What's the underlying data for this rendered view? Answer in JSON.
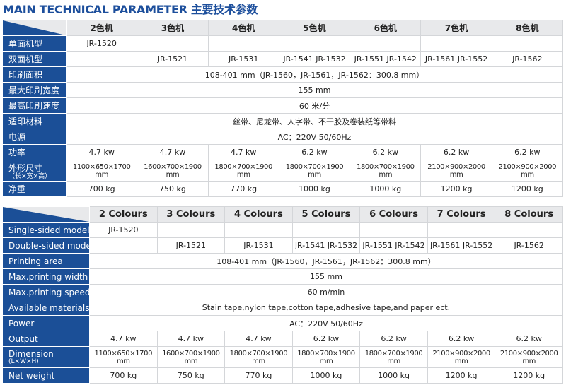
{
  "title": "MAIN TECHNICAL PARAMETER 主要技术参数",
  "colors": {
    "label_bg": "#1b4f97",
    "header_bg": "#e8e9eb",
    "title": "#1d4f9c"
  },
  "table_cn": {
    "headers": [
      "2色机",
      "3色机",
      "4色机",
      "5色机",
      "6色机",
      "7色机",
      "8色机"
    ],
    "rows": [
      {
        "label": "单面机型",
        "cells": [
          "JR-1520",
          "",
          "",
          "",
          "",
          "",
          ""
        ]
      },
      {
        "label": "双面机型",
        "cells": [
          "",
          "JR-1521",
          "JR-1531",
          "JR-1541 JR-1532",
          "JR-1551 JR-1542",
          "JR-1561 JR-1552",
          "JR-1562"
        ]
      },
      {
        "label": "印刷面积",
        "span": "108-401 mm（JR-1560，JR-1561，JR-1562：300.8 mm）"
      },
      {
        "label": "最大印刷宽度",
        "span": "155 mm"
      },
      {
        "label": "最高印刷速度",
        "span": "60 米/分"
      },
      {
        "label": "适印材料",
        "span": "丝带、尼龙带、人字带、不干胶及卷装纸等带料"
      },
      {
        "label": "电源",
        "span": "AC：220V   50/60Hz"
      },
      {
        "label": "功率",
        "cells": [
          "4.7 kw",
          "4.7 kw",
          "4.7 kw",
          "6.2 kw",
          "6.2 kw",
          "6.2 kw",
          "6.2 kw"
        ]
      },
      {
        "label": "外形尺寸",
        "sublabel": "（长×宽×高）",
        "dim": true,
        "cells": [
          "1100×650×1700 mm",
          "1600×700×1900 mm",
          "1800×700×1900 mm",
          "1800×700×1900 mm",
          "1800×700×1900 mm",
          "2100×900×2000 mm",
          "2100×900×2000 mm"
        ]
      },
      {
        "label": "净重",
        "cells": [
          "700 kg",
          "750 kg",
          "770 kg",
          "1000 kg",
          "1000 kg",
          "1200 kg",
          "1200 kg"
        ]
      }
    ]
  },
  "table_en": {
    "headers": [
      "2 Colours",
      "3 Colours",
      "4 Colours",
      "5 Colours",
      "6 Colours",
      "7 Colours",
      "8 Colours"
    ],
    "rows": [
      {
        "label": "Single-sided model",
        "cells": [
          "JR-1520",
          "",
          "",
          "",
          "",
          "",
          ""
        ]
      },
      {
        "label": "Double-sided model",
        "cells": [
          "",
          "JR-1521",
          "JR-1531",
          "JR-1541 JR-1532",
          "JR-1551 JR-1542",
          "JR-1561 JR-1552",
          "JR-1562"
        ]
      },
      {
        "label": "Printing area",
        "span": "108-401 mm（JR-1560，JR-1561，JR-1562：300.8 mm）"
      },
      {
        "label": "Max.printing width",
        "span": "155 mm"
      },
      {
        "label": "Max.printing speed",
        "span": "60 m/min"
      },
      {
        "label": "Available materials",
        "span": "Stain tape,nylon tape,cotton tape,adhesive tape,and paper ect."
      },
      {
        "label": "Power",
        "span": "AC：220V   50/60Hz"
      },
      {
        "label": "Output",
        "cells": [
          "4.7 kw",
          "4.7 kw",
          "4.7 kw",
          "6.2 kw",
          "6.2 kw",
          "6.2 kw",
          "6.2 kw"
        ]
      },
      {
        "label": "Dimension",
        "sublabel": "(L×W×H)",
        "dim": true,
        "cells": [
          "1100×650×1700 mm",
          "1600×700×1900 mm",
          "1800×700×1900 mm",
          "1800×700×1900 mm",
          "1800×700×1900 mm",
          "2100×900×2000 mm",
          "2100×900×2000 mm"
        ]
      },
      {
        "label": "Net weight",
        "cells": [
          "700 kg",
          "750 kg",
          "770 kg",
          "1000 kg",
          "1000 kg",
          "1200 kg",
          "1200 kg"
        ]
      }
    ]
  }
}
